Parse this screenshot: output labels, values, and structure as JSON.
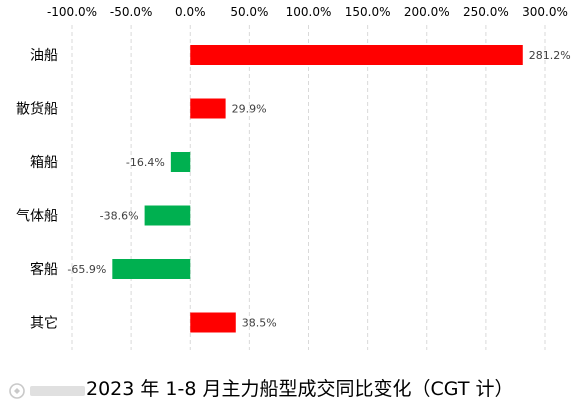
{
  "chart_data": {
    "type": "bar",
    "orientation": "horizontal",
    "title": "2023 年 1-8 月主力船型成交同比变化（CGT 计）",
    "categories": [
      "油船",
      "散货船",
      "箱船",
      "气体船",
      "客船",
      "其它"
    ],
    "values": [
      281.2,
      29.9,
      -16.4,
      -38.6,
      -65.9,
      38.5
    ],
    "data_labels": [
      "281.2%",
      "29.9%",
      "-16.4%",
      "-38.6%",
      "-65.9%",
      "38.5%"
    ],
    "xlim": [
      -100,
      300
    ],
    "xticks": [
      -100,
      -50,
      0,
      50,
      100,
      150,
      200,
      250,
      300
    ],
    "xtick_labels": [
      "-100.0%",
      "-50.0%",
      "0.0%",
      "50.0%",
      "100.0%",
      "150.0%",
      "200.0%",
      "250.0%",
      "300.0%"
    ],
    "x_axis_position": "top",
    "gridlines": "vertical-dashed",
    "legend": "none",
    "colors": {
      "positive": "#FF0000",
      "negative": "#00B050",
      "grid": "#D9D9D9",
      "text": "#404040"
    }
  },
  "watermark": {
    "icon": "watermark-logo-icon"
  }
}
